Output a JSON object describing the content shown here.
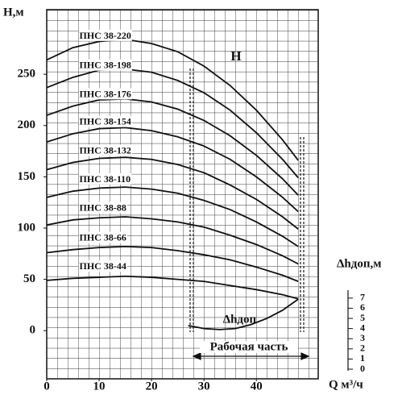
{
  "chart_data": {
    "type": "line",
    "y_label": "H,м",
    "x_label": "Q м³/ч",
    "y2_label": "Δhдоп,м",
    "annotations": [
      "H",
      "Рабочая часть"
    ],
    "x": [
      0,
      5,
      10,
      15,
      20,
      25,
      30,
      35,
      40,
      45,
      48
    ],
    "xlim": [
      0,
      51.8
    ],
    "xticks": [
      0,
      10,
      20,
      30,
      40
    ],
    "ylim": [
      -47,
      313
    ],
    "yticks": [
      0,
      50,
      100,
      150,
      200,
      250
    ],
    "y2lim": [
      -0.95,
      35.4
    ],
    "y2ticks": [
      0,
      1,
      2,
      3,
      4,
      5,
      6,
      7
    ],
    "grid": true,
    "series": [
      {
        "name": "ПНС 38-220",
        "color": "#111",
        "values": [
          264,
          276,
          282,
          284,
          280,
          272,
          258,
          239,
          215,
          186,
          166
        ]
      },
      {
        "name": "ПНС 38-198",
        "color": "#111",
        "values": [
          237,
          247,
          254,
          255,
          252,
          244,
          232,
          215,
          193,
          167,
          149
        ]
      },
      {
        "name": "ПНС 38-176",
        "color": "#111",
        "values": [
          210,
          219,
          225,
          226,
          223,
          216,
          205,
          190,
          171,
          148,
          132
        ]
      },
      {
        "name": "ПНС 38-154",
        "color": "#111",
        "values": [
          184,
          192,
          197,
          198,
          195,
          189,
          180,
          167,
          150,
          130,
          116
        ]
      },
      {
        "name": "ПНС 38-132",
        "color": "#111",
        "values": [
          157,
          164,
          168,
          169,
          167,
          162,
          154,
          142,
          128,
          111,
          99
        ]
      },
      {
        "name": "ПНС 38-110",
        "color": "#111",
        "values": [
          130,
          136,
          139,
          140,
          138,
          134,
          127,
          118,
          106,
          92,
          82
        ]
      },
      {
        "name": "ПНС 38-88",
        "color": "#111",
        "values": [
          103,
          108,
          110,
          111,
          109,
          106,
          101,
          93,
          84,
          73,
          65
        ]
      },
      {
        "name": "ПНС 38-66",
        "color": "#111",
        "values": [
          76,
          79,
          81,
          82,
          81,
          78,
          74,
          69,
          62,
          54,
          48
        ]
      },
      {
        "name": "ПНС 38-44",
        "color": "#111",
        "values": [
          49,
          51,
          52,
          53,
          52,
          50,
          48,
          44,
          40,
          35,
          31
        ]
      },
      {
        "name": "Δhдоп",
        "color": "#111",
        "axis": "y2",
        "x": [
          27,
          30,
          33,
          36,
          39,
          42,
          45,
          48
        ],
        "values": [
          4.3,
          4.0,
          3.9,
          4.0,
          4.4,
          5.0,
          5.8,
          6.9
        ]
      }
    ]
  }
}
